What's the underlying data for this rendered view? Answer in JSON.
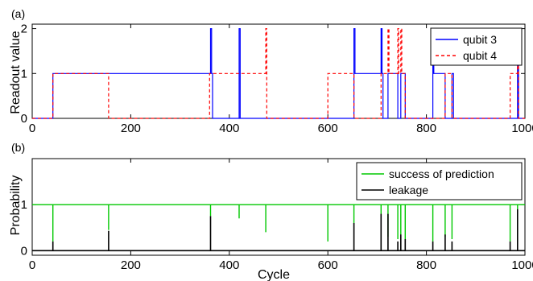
{
  "chart_data": [
    {
      "panel_tag": "(a)",
      "type": "line",
      "xlabel": "",
      "ylabel": "Readout value",
      "xlim": [
        0,
        1000
      ],
      "ylim": [
        0,
        2.1
      ],
      "xticks": [
        "0",
        "200",
        "400",
        "600",
        "800",
        "1000"
      ],
      "yticks": [
        "0",
        "1",
        "2"
      ],
      "legend_position": "top-right",
      "series": [
        {
          "name": "qubit 3",
          "color": "#0000ff",
          "dash": "solid",
          "points": [
            [
              0,
              0
            ],
            [
              42,
              0
            ],
            [
              42,
              1
            ],
            [
              362,
              1
            ],
            [
              362,
              2
            ],
            [
              364,
              2
            ],
            [
              364,
              1
            ],
            [
              366,
              1
            ],
            [
              366,
              0
            ],
            [
              420,
              0
            ],
            [
              420,
              2
            ],
            [
              422,
              2
            ],
            [
              422,
              0
            ],
            [
              653,
              0
            ],
            [
              653,
              2
            ],
            [
              655,
              2
            ],
            [
              655,
              1
            ],
            [
              708,
              1
            ],
            [
              708,
              2
            ],
            [
              710,
              2
            ],
            [
              710,
              1
            ],
            [
              712,
              1
            ],
            [
              712,
              0
            ],
            [
              722,
              0
            ],
            [
              722,
              1
            ],
            [
              742,
              1
            ],
            [
              742,
              0
            ],
            [
              748,
              0
            ],
            [
              748,
              1
            ],
            [
              757,
              1
            ],
            [
              757,
              0
            ],
            [
              813,
              0
            ],
            [
              813,
              2
            ],
            [
              815,
              2
            ],
            [
              815,
              1
            ],
            [
              838,
              1
            ],
            [
              838,
              0
            ],
            [
              852,
              0
            ],
            [
              852,
              1
            ],
            [
              855,
              1
            ],
            [
              855,
              0
            ],
            [
              985,
              0
            ],
            [
              985,
              2
            ],
            [
              987,
              2
            ],
            [
              987,
              0
            ],
            [
              1000,
              0
            ]
          ]
        },
        {
          "name": "qubit 4",
          "color": "#ff0000",
          "dash": "dashed",
          "points": [
            [
              0,
              0
            ],
            [
              42,
              0
            ],
            [
              42,
              1
            ],
            [
              155,
              1
            ],
            [
              155,
              0
            ],
            [
              360,
              0
            ],
            [
              360,
              1
            ],
            [
              474,
              1
            ],
            [
              474,
              2
            ],
            [
              476,
              2
            ],
            [
              476,
              0
            ],
            [
              600,
              0
            ],
            [
              600,
              1
            ],
            [
              653,
              1
            ],
            [
              653,
              0
            ],
            [
              708,
              0
            ],
            [
              708,
              1
            ],
            [
              722,
              1
            ],
            [
              722,
              2
            ],
            [
              724,
              2
            ],
            [
              724,
              1
            ],
            [
              742,
              1
            ],
            [
              742,
              2
            ],
            [
              744,
              2
            ],
            [
              744,
              1
            ],
            [
              748,
              1
            ],
            [
              748,
              2
            ],
            [
              750,
              2
            ],
            [
              750,
              1
            ],
            [
              757,
              1
            ],
            [
              757,
              0
            ],
            [
              838,
              0
            ],
            [
              838,
              1
            ],
            [
              852,
              1
            ],
            [
              852,
              0
            ],
            [
              970,
              0
            ],
            [
              970,
              1
            ],
            [
              985,
              1
            ],
            [
              985,
              2
            ],
            [
              987,
              2
            ],
            [
              987,
              0
            ],
            [
              1000,
              0
            ]
          ]
        }
      ]
    },
    {
      "panel_tag": "(b)",
      "type": "line",
      "xlabel": "Cycle",
      "ylabel": "Probability",
      "xlim": [
        0,
        1000
      ],
      "ylim": [
        -0.1,
        2
      ],
      "xticks": [
        "0",
        "200",
        "400",
        "600",
        "800",
        "1000"
      ],
      "yticks": [
        "0",
        "1"
      ],
      "legend_position": "top-right",
      "series": [
        {
          "name": "success of prediction",
          "color": "#00c800",
          "baseline": 1,
          "dips": [
            [
              42,
              0.2
            ],
            [
              155,
              0.45
            ],
            [
              362,
              0.75
            ],
            [
              420,
              0.7
            ],
            [
              474,
              0.4
            ],
            [
              600,
              0.2
            ],
            [
              653,
              0.6
            ],
            [
              708,
              0.25
            ],
            [
              722,
              0.3
            ],
            [
              742,
              0.25
            ],
            [
              748,
              0.15
            ],
            [
              757,
              0.25
            ],
            [
              813,
              0.2
            ],
            [
              838,
              0.3
            ],
            [
              852,
              0.25
            ],
            [
              970,
              0.2
            ],
            [
              985,
              0.4
            ]
          ]
        },
        {
          "name": "leakage",
          "color": "#000000",
          "baseline": 0,
          "spikes": [
            [
              42,
              0.2
            ],
            [
              155,
              0.43
            ],
            [
              362,
              0.75
            ],
            [
              653,
              0.6
            ],
            [
              708,
              0.8
            ],
            [
              722,
              0.8
            ],
            [
              742,
              0.2
            ],
            [
              748,
              0.35
            ],
            [
              757,
              0.25
            ],
            [
              813,
              0.2
            ],
            [
              838,
              0.35
            ],
            [
              852,
              0.2
            ],
            [
              970,
              0.2
            ],
            [
              985,
              0.9
            ]
          ]
        }
      ]
    }
  ]
}
